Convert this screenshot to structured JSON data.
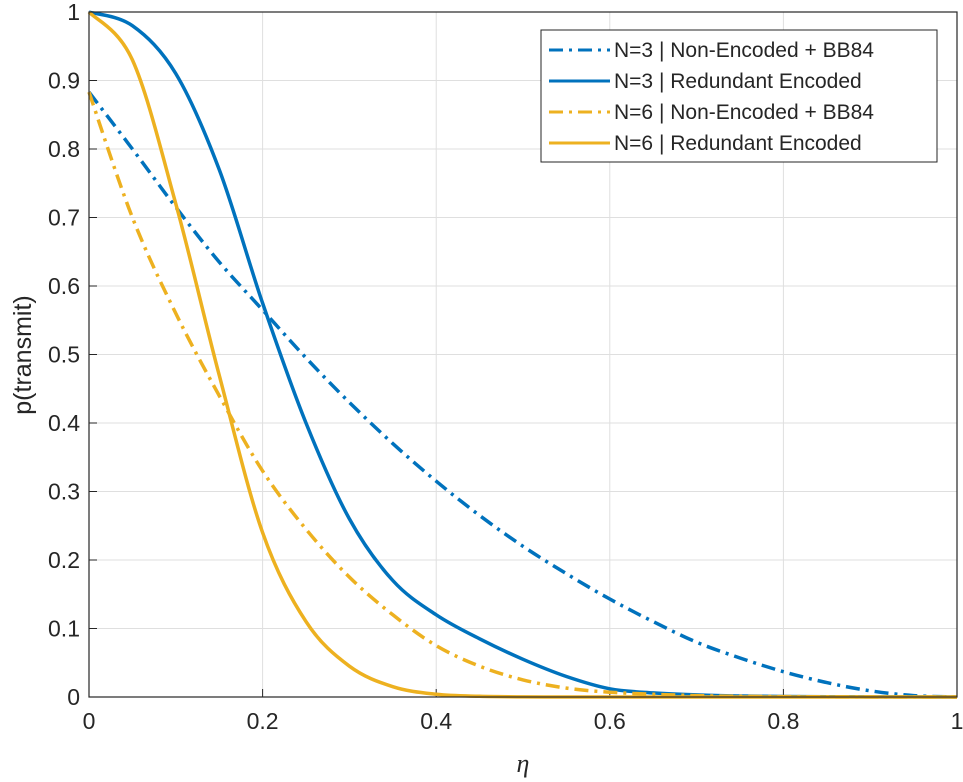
{
  "chart_data": {
    "type": "line",
    "title": "",
    "xlabel": "η",
    "ylabel": "p(transmit)",
    "xlim": [
      0,
      1
    ],
    "ylim": [
      0,
      1
    ],
    "xticks": [
      0,
      0.2,
      0.4,
      0.6,
      0.8,
      1
    ],
    "yticks": [
      0,
      0.1,
      0.2,
      0.3,
      0.4,
      0.5,
      0.6,
      0.7,
      0.8,
      0.9,
      1
    ],
    "xtick_labels": [
      "0",
      "0.2",
      "0.4",
      "0.6",
      "0.8",
      "1"
    ],
    "ytick_labels": [
      "0",
      "0.1",
      "0.2",
      "0.3",
      "0.4",
      "0.5",
      "0.6",
      "0.7",
      "0.8",
      "0.9",
      "1"
    ],
    "grid": true,
    "legend_position": "top-right",
    "x": [
      0,
      0.05,
      0.1,
      0.15,
      0.2,
      0.25,
      0.3,
      0.35,
      0.4,
      0.45,
      0.5,
      0.55,
      0.6,
      0.65,
      0.7,
      0.75,
      0.8,
      0.85,
      0.9,
      0.95,
      1
    ],
    "series": [
      {
        "name": "N=3 | Non-Encoded + BB84",
        "color": "#0072BD",
        "style": "dashdot",
        "values": [
          0.883,
          0.8,
          0.715,
          0.635,
          0.565,
          0.495,
          0.43,
          0.37,
          0.315,
          0.265,
          0.22,
          0.18,
          0.143,
          0.11,
          0.08,
          0.057,
          0.037,
          0.021,
          0.009,
          0.002,
          0.0
        ]
      },
      {
        "name": "N=3 | Redundant Encoded",
        "color": "#0072BD",
        "style": "solid",
        "values": [
          1.0,
          0.98,
          0.91,
          0.77,
          0.575,
          0.4,
          0.26,
          0.17,
          0.12,
          0.085,
          0.055,
          0.03,
          0.012,
          0.006,
          0.003,
          0.0015,
          0.0008,
          0.0004,
          0.0002,
          0.0001,
          0.0
        ]
      },
      {
        "name": "N=6 | Non-Encoded + BB84",
        "color": "#EDB120",
        "style": "dashdot",
        "values": [
          0.883,
          0.7,
          0.56,
          0.44,
          0.33,
          0.245,
          0.175,
          0.12,
          0.075,
          0.045,
          0.025,
          0.013,
          0.007,
          0.004,
          0.002,
          0.001,
          0.0006,
          0.0003,
          0.0001,
          0.0,
          0.0
        ]
      },
      {
        "name": "N=6 | Redundant Encoded",
        "color": "#EDB120",
        "style": "solid",
        "values": [
          1.0,
          0.93,
          0.72,
          0.47,
          0.24,
          0.11,
          0.045,
          0.015,
          0.004,
          0.001,
          0.0002,
          0.0,
          0.0,
          0.0,
          0.0,
          0.0,
          0.0,
          0.0,
          0.0,
          0.0,
          0.0
        ]
      }
    ]
  }
}
